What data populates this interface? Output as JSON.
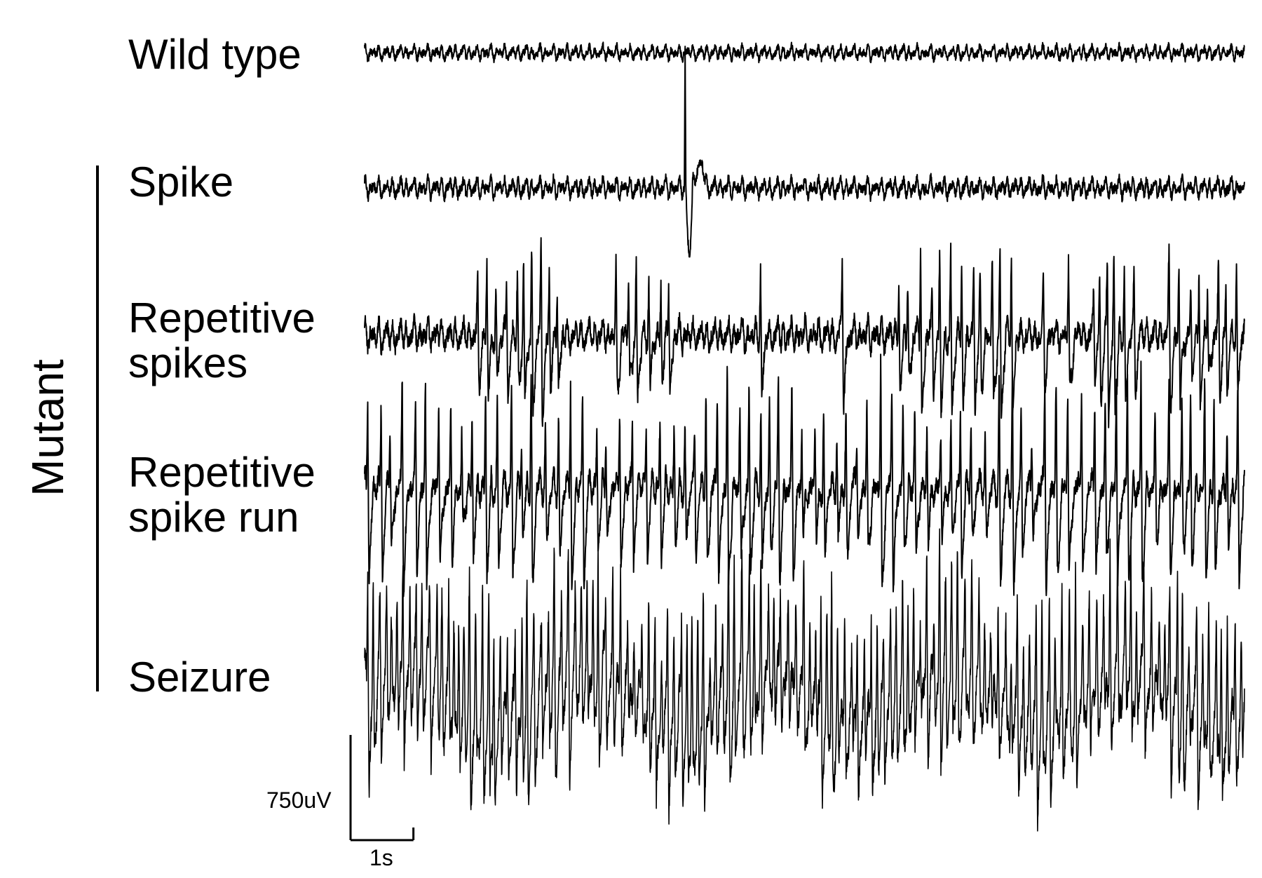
{
  "chart_data": {
    "type": "line",
    "title": "",
    "xlabel": "",
    "ylabel": "",
    "grid": false,
    "legend": "none",
    "group_label": "Mutant",
    "group_members": [
      "Spike",
      "Repetitive spikes",
      "Repetitive spike run",
      "Seizure"
    ],
    "line_color": "#000000",
    "background_color": "#ffffff",
    "trace_duration_s": 14,
    "scale_bar": {
      "voltage_label": "750uV",
      "voltage_uV": 750,
      "time_label": "1s",
      "time_s": 1
    },
    "series": [
      {
        "name": "Wild type",
        "label_lines": [
          "Wild type"
        ],
        "mutant": false,
        "pattern": "baseline",
        "noise_amplitude_uV": 55,
        "events": []
      },
      {
        "name": "Spike",
        "label_lines": [
          "Spike"
        ],
        "mutant": true,
        "pattern": "single_spike",
        "noise_amplitude_uV": 75,
        "events": [
          {
            "time_s": 5.1,
            "peak_uV": 1000,
            "trough_uV": -470
          }
        ]
      },
      {
        "name": "Repetitive spikes",
        "label_lines": [
          "Repetitive",
          "spikes"
        ],
        "mutant": true,
        "pattern": "intermittent_spikes",
        "noise_amplitude_uV": 120,
        "spike_amplitude_uV": 650,
        "bursts": [
          {
            "start_s": 1.8,
            "end_s": 3.2
          },
          {
            "start_s": 4.2,
            "end_s": 4.9
          },
          {
            "start_s": 8.5,
            "end_s": 10.4
          },
          {
            "start_s": 11.6,
            "end_s": 12.3
          },
          {
            "start_s": 12.8,
            "end_s": 14.0
          }
        ]
      },
      {
        "name": "Repetitive spike run",
        "label_lines": [
          "Repetitive",
          "spike run"
        ],
        "mutant": true,
        "pattern": "spike_run",
        "noise_amplitude_uV": 120,
        "spike_amplitude_uV": 820,
        "spike_rate_hz": 5.5
      },
      {
        "name": "Seizure",
        "label_lines": [
          "Seizure"
        ],
        "mutant": true,
        "pattern": "continuous_seizure",
        "noise_amplitude_uV": 200,
        "spike_amplitude_uV": 830,
        "spike_rate_hz": 10
      }
    ]
  }
}
